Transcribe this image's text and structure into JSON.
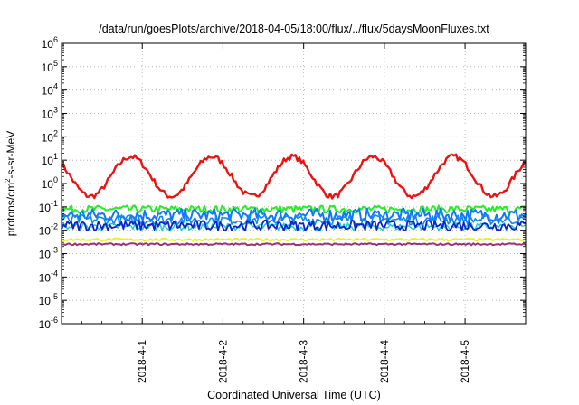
{
  "chart_data": {
    "type": "line",
    "title": "/data/run/goesPlots/archive/2018-04-05/18:00/flux/../flux/5daysMoonFluxes.txt",
    "xlabel": "Coordinated Universal Time (UTC)",
    "ylabel": "protons/cm²-s-sr-MeV",
    "ylabel_parts": [
      "protons/cm",
      "2",
      "-s-sr-MeV"
    ],
    "y_scale": "log",
    "ylim_exponent": [
      -6,
      6
    ],
    "ytick_exponents": [
      -6,
      -5,
      -4,
      -3,
      -2,
      -1,
      0,
      1,
      2,
      3,
      4,
      5,
      6
    ],
    "xlim": [
      "2018-03-31 00:00",
      "2018-04-05 18:00"
    ],
    "xticks": [
      {
        "label": "2018-4-1",
        "day": 1
      },
      {
        "label": "2018-4-2",
        "day": 2
      },
      {
        "label": "2018-4-3",
        "day": 3
      },
      {
        "label": "2018-4-4",
        "day": 4
      },
      {
        "label": "2018-4-5",
        "day": 5
      }
    ],
    "grid": true,
    "legend": "none",
    "series": [
      {
        "color": "#ee1111",
        "width": 2.4,
        "level_log10": 0.3,
        "amp": 0.85,
        "period_days": 1.0,
        "phase": 0.86,
        "noise": 0.12
      },
      {
        "color": "#22ee22",
        "width": 2.0,
        "level_log10": -1.1,
        "amp": 0.0,
        "period_days": 1.0,
        "phase": 0.0,
        "noise": 0.16
      },
      {
        "color": "#1177ff",
        "width": 2.0,
        "level_log10": -1.35,
        "amp": 0.0,
        "period_days": 1.0,
        "phase": 0.0,
        "noise": 0.28
      },
      {
        "color": "#1188ee",
        "width": 1.6,
        "level_log10": -1.55,
        "amp": 0.0,
        "period_days": 1.0,
        "phase": 0.0,
        "noise": 0.22
      },
      {
        "color": "#11cccc",
        "width": 1.4,
        "level_log10": -1.85,
        "amp": 0.0,
        "period_days": 1.0,
        "phase": 0.0,
        "noise": 0.16
      },
      {
        "color": "#1122cc",
        "width": 1.8,
        "level_log10": -1.8,
        "amp": 0.0,
        "period_days": 1.0,
        "phase": 0.0,
        "noise": 0.22
      },
      {
        "color": "#eeee22",
        "width": 2.0,
        "level_log10": -2.4,
        "amp": 0.0,
        "period_days": 1.0,
        "phase": 0.0,
        "noise": 0.05
      },
      {
        "color": "#993377",
        "width": 2.0,
        "level_log10": -2.6,
        "amp": 0.0,
        "period_days": 1.0,
        "phase": 0.0,
        "noise": 0.04
      }
    ]
  }
}
